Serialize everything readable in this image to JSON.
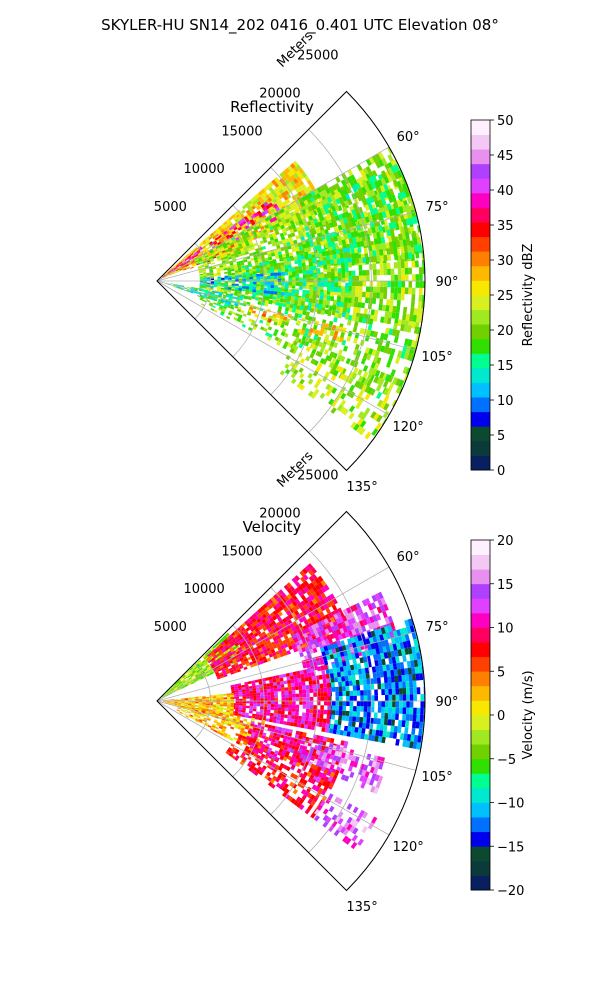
{
  "figure": {
    "suptitle": "SKYLER-HU  SN14_202  0416_0.401 UTC Elevation 08°"
  },
  "chart_data": [
    {
      "type": "heatmap",
      "projection": "polar-sector",
      "title": "Reflectivity",
      "range_label": "Meters",
      "range_ticks": [
        5000,
        10000,
        15000,
        20000,
        25000
      ],
      "range_tick_labels": [
        "5000",
        "10000",
        "15000",
        "20000",
        "25000"
      ],
      "range_max": 25000,
      "azimuth_range": [
        45,
        135
      ],
      "azimuth_ticks": [
        60,
        75,
        90,
        105,
        120,
        135
      ],
      "azimuth_tick_labels": [
        "60°",
        "75°",
        "90°",
        "105°",
        "120°",
        "135°"
      ],
      "grid": true,
      "colorbar": {
        "label": "Reflectivity dBZ",
        "min": 0,
        "max": 50,
        "ticks": [
          0,
          5,
          10,
          15,
          20,
          25,
          30,
          35,
          40,
          45,
          50
        ],
        "tick_labels": [
          "0",
          "5",
          "10",
          "15",
          "20",
          "25",
          "30",
          "35",
          "40",
          "45",
          "50"
        ],
        "colors": [
          "#082060",
          "#0a3a3a",
          "#0b4a30",
          "#0000ee",
          "#0070ff",
          "#00c0ff",
          "#00e8d0",
          "#00ff90",
          "#30e000",
          "#70d000",
          "#a0e820",
          "#d8f020",
          "#f8e800",
          "#ffb800",
          "#ff8000",
          "#ff4000",
          "#ff0000",
          "#ff0060",
          "#ff00c0",
          "#e040ff",
          "#b040ff",
          "#e890f0",
          "#f4c8f4",
          "#fff0ff"
        ]
      },
      "regions": [
        {
          "az": [
            49,
            66
          ],
          "r": [
            0,
            17000
          ],
          "value": 26,
          "fill": 0.88
        },
        {
          "az": [
            52,
            60
          ],
          "r": [
            0,
            5000
          ],
          "value": 38,
          "fill": 0.75
        },
        {
          "az": [
            54,
            62
          ],
          "r": [
            6000,
            13000
          ],
          "value": 38,
          "fill": 0.45
        },
        {
          "az": [
            58,
            70
          ],
          "r": [
            2000,
            8000
          ],
          "value": 30,
          "fill": 0.55
        },
        {
          "az": [
            60,
            100
          ],
          "r": [
            4000,
            25000
          ],
          "value": 21,
          "fill": 0.74
        },
        {
          "az": [
            64,
            84
          ],
          "r": [
            14000,
            25000
          ],
          "value": 19,
          "fill": 0.68
        },
        {
          "az": [
            80,
            100
          ],
          "r": [
            8000,
            18000
          ],
          "value": 18,
          "fill": 0.7
        },
        {
          "az": [
            86,
            96
          ],
          "r": [
            4000,
            12000
          ],
          "value": 12,
          "fill": 0.55
        },
        {
          "az": [
            100,
            118
          ],
          "r": [
            4000,
            25000
          ],
          "value": 20,
          "fill": 0.45
        },
        {
          "az": [
            104,
            110
          ],
          "r": [
            9000,
            18000
          ],
          "value": 27,
          "fill": 0.4
        },
        {
          "az": [
            112,
            126
          ],
          "r": [
            14000,
            25000
          ],
          "value": 22,
          "fill": 0.4
        },
        {
          "az": [
            100,
            108
          ],
          "r": [
            0,
            8000
          ],
          "value": 15,
          "fill": 0.6
        }
      ]
    },
    {
      "type": "heatmap",
      "projection": "polar-sector",
      "title": "Velocity",
      "range_label": "Meters",
      "range_ticks": [
        5000,
        10000,
        15000,
        20000,
        25000
      ],
      "range_tick_labels": [
        "5000",
        "10000",
        "15000",
        "20000",
        "25000"
      ],
      "range_max": 25000,
      "azimuth_range": [
        45,
        135
      ],
      "azimuth_ticks": [
        60,
        75,
        90,
        105,
        120,
        135
      ],
      "azimuth_tick_labels": [
        "60°",
        "75°",
        "90°",
        "105°",
        "120°",
        "135°"
      ],
      "grid": true,
      "colorbar": {
        "label": "Velocity (m/s)",
        "min": -20,
        "max": 20,
        "ticks": [
          -20,
          -15,
          -10,
          -5,
          0,
          5,
          10,
          15,
          20
        ],
        "tick_labels": [
          "−20",
          "−15",
          "−10",
          "−5",
          "0",
          "5",
          "10",
          "15",
          "20"
        ],
        "colors": [
          "#082060",
          "#0a3a3a",
          "#0b4a30",
          "#0000ee",
          "#0070ff",
          "#00c0ff",
          "#00e8d0",
          "#00ff90",
          "#30e000",
          "#70d000",
          "#a0e820",
          "#d8f020",
          "#f8e800",
          "#ffb800",
          "#ff8000",
          "#ff4000",
          "#ff0000",
          "#ff0060",
          "#ff00c0",
          "#e040ff",
          "#b040ff",
          "#e890f0",
          "#f4c8f4",
          "#fff0ff"
        ]
      },
      "regions": [
        {
          "az": [
            46,
            64
          ],
          "r": [
            0,
            9000
          ],
          "value": -3,
          "fill": 0.95
        },
        {
          "az": [
            48,
            70
          ],
          "r": [
            6000,
            19000
          ],
          "value": 8,
          "fill": 0.88
        },
        {
          "az": [
            64,
            78
          ],
          "r": [
            14000,
            23000
          ],
          "value": 13,
          "fill": 0.78
        },
        {
          "az": [
            72,
            100
          ],
          "r": [
            16000,
            25000
          ],
          "value": -12,
          "fill": 0.85
        },
        {
          "az": [
            78,
            100
          ],
          "r": [
            7000,
            16000
          ],
          "value": 10,
          "fill": 0.9
        },
        {
          "az": [
            84,
            104
          ],
          "r": [
            0,
            7000
          ],
          "value": 2,
          "fill": 0.9
        },
        {
          "az": [
            100,
            118
          ],
          "r": [
            2000,
            10000
          ],
          "value": 2,
          "fill": 0.6
        },
        {
          "az": [
            102,
            116
          ],
          "r": [
            9000,
            18000
          ],
          "value": 10,
          "fill": 0.8
        },
        {
          "az": [
            104,
            112
          ],
          "r": [
            14000,
            22000
          ],
          "value": 14,
          "fill": 0.55
        },
        {
          "az": [
            112,
            126
          ],
          "r": [
            8000,
            18000
          ],
          "value": 8,
          "fill": 0.55
        },
        {
          "az": [
            118,
            126
          ],
          "r": [
            18000,
            23000
          ],
          "value": 14,
          "fill": 0.5
        }
      ]
    }
  ]
}
